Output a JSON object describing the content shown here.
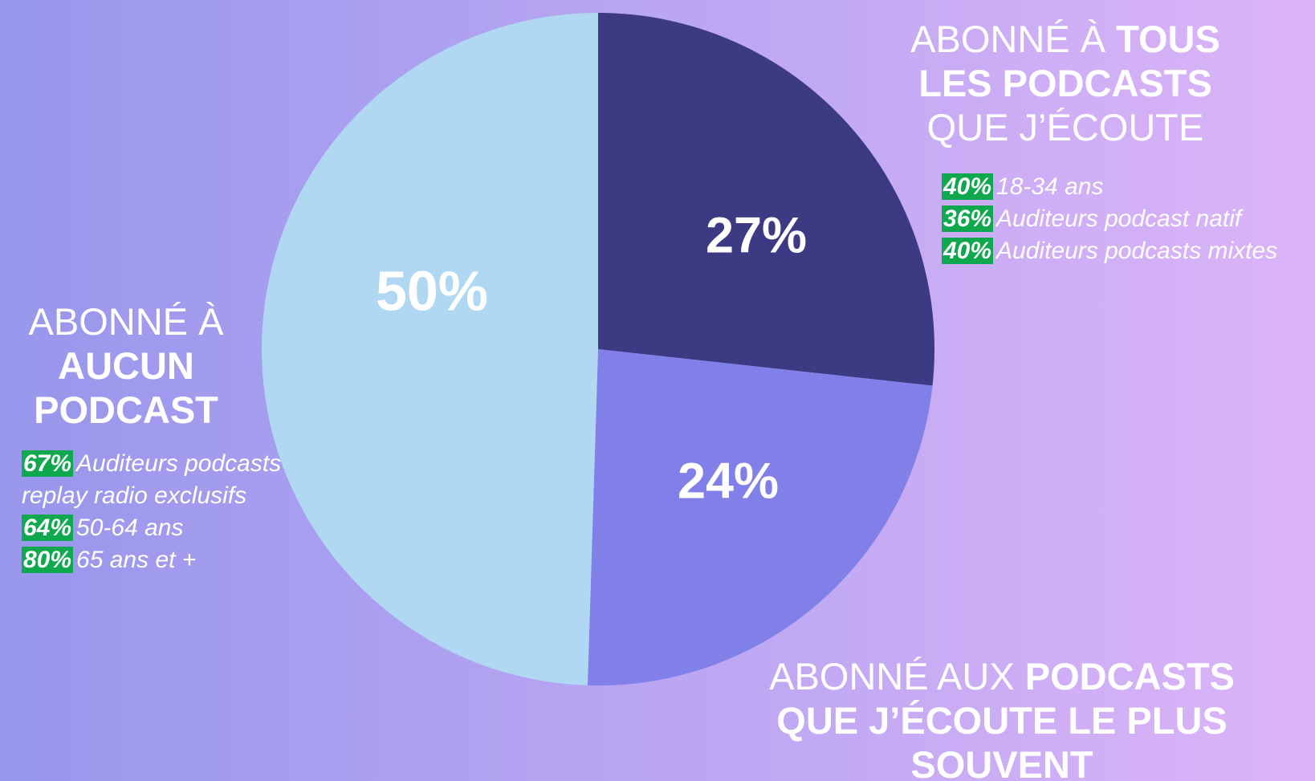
{
  "chart_data": {
    "type": "pie",
    "slices": [
      {
        "value": 27,
        "value_label": "27%",
        "color": "#3c3a82",
        "title_lines": [
          [
            {
              "text": "ABONNÉ À "
            },
            {
              "text": "TOUS",
              "bold": true
            }
          ],
          [
            {
              "text": "LES PODCASTS",
              "bold": true
            }
          ],
          [
            {
              "text": "QUE J’ÉCOUTE"
            }
          ]
        ],
        "stats": [
          {
            "value": 40,
            "value_label": "40%",
            "text": "18-34 ans"
          },
          {
            "value": 36,
            "value_label": "36%",
            "text": "Auditeurs podcast natif"
          },
          {
            "value": 40,
            "value_label": "40%",
            "text": "Auditeurs podcasts mixtes"
          }
        ]
      },
      {
        "value": 24,
        "value_label": "24%",
        "color": "#8080e8",
        "title_lines": [
          [
            {
              "text": "ABONNÉ AUX "
            },
            {
              "text": "PODCASTS",
              "bold": true
            }
          ],
          [
            {
              "text": "QUE J’ÉCOUTE LE PLUS",
              "bold": true
            }
          ],
          [
            {
              "text": "SOUVENT",
              "bold": true
            }
          ]
        ],
        "stats": []
      },
      {
        "value": 50,
        "value_label": "50%",
        "color": "#b0d8f2",
        "title_lines": [
          [
            {
              "text": "ABONNÉ À"
            }
          ],
          [
            {
              "text": "AUCUN",
              "bold": true
            }
          ],
          [
            {
              "text": "PODCAST",
              "bold": true
            }
          ]
        ],
        "stats": [
          {
            "value": 67,
            "value_label": "67%",
            "text": "Auditeurs podcasts replay radio exclusifs"
          },
          {
            "value": 64,
            "value_label": "64%",
            "text": "50-64 ans"
          },
          {
            "value": 80,
            "value_label": "80%",
            "text": "65 ans et +"
          }
        ]
      }
    ]
  }
}
